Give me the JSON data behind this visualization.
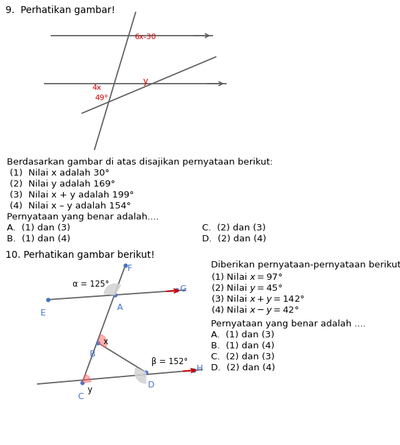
{
  "title9": "9.  Perhatikan gambar!",
  "title10": "10. Perhatikan gambar berikut!",
  "bg_color": "#ffffff",
  "text_color": "#000000",
  "red_color": "#cc0000",
  "blue_color": "#4472c4",
  "gray_color": "#606060",
  "q9_text_lines": [
    "Berdasarkan gambar di atas disajikan pernyataan berikut:",
    " (1)  Nilai x adalah 30°",
    " (2)  Nilai y adalah 169°",
    " (3)  Nilai x + y adalah 199°",
    " (4)  Nilai x – y adalah 154°",
    "Pernyataan yang benar adalah...."
  ],
  "q9_ans_left": [
    "A.  (1) dan (3)",
    "B.  (1) dan (4)"
  ],
  "q9_ans_right": [
    "C.  (2) dan (3)",
    "D.  (2) dan (4)"
  ],
  "q10_statements_title": "Diberikan pernyataan-pernyataan berikut:",
  "q10_math_lines": [
    "(1) Nilai $x = 97$°",
    "(2) Nilai $y = 45$°",
    "(3) Nilai $x + y = 142$°",
    "(4) Nilai $x - y = 42$°"
  ],
  "q10_answer_title": "Pernyataan yang benar adalah ....",
  "q10_answers": [
    "A.  (1) dan (3)",
    "B.  (1) dan (4)",
    "C.  (2) dan (3)",
    "D.  (2) dan (4)"
  ],
  "label_6x30": "6x-30",
  "label_4x": "4x",
  "label_y": "y",
  "label_49": "49°",
  "label_alpha": "α = 125°",
  "label_beta": "β = 152°",
  "label_x_angle": "x",
  "label_y_angle": "y"
}
